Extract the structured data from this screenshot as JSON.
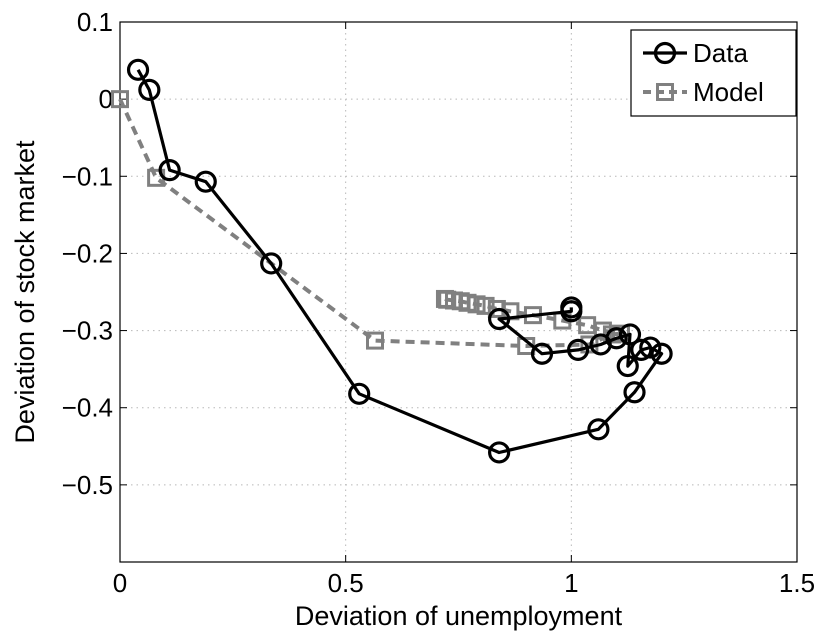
{
  "chart_data": {
    "type": "line",
    "xlabel": "Deviation of unemployment",
    "ylabel": "Deviation of stock market",
    "xlim": [
      0,
      1.5
    ],
    "ylim": [
      -0.6,
      0.1
    ],
    "x_ticks": [
      0,
      0.5,
      1,
      1.5
    ],
    "x_tick_labels": [
      "0",
      "0.5",
      "1",
      "1.5"
    ],
    "y_ticks": [
      0.1,
      0,
      -0.1,
      -0.2,
      -0.3,
      -0.4,
      -0.5
    ],
    "y_tick_labels": [
      "0.1",
      "0",
      "−0.1",
      "−0.2",
      "−0.3",
      "−0.4",
      "−0.5"
    ],
    "grid": true,
    "legend_position": "top-right",
    "series": [
      {
        "name": "Data",
        "color": "#000000",
        "marker": "circle",
        "line_style": "solid",
        "x": [
          0.04,
          0.065,
          0.11,
          0.19,
          0.335,
          0.53,
          0.84,
          1.06,
          1.14,
          1.2,
          1.175,
          1.155,
          1.125,
          1.13,
          1.1,
          1.065,
          1.015,
          0.935,
          0.84,
          1.0,
          1.0
        ],
        "y": [
          0.038,
          0.012,
          -0.092,
          -0.107,
          -0.213,
          -0.382,
          -0.458,
          -0.428,
          -0.38,
          -0.33,
          -0.322,
          -0.325,
          -0.346,
          -0.305,
          -0.31,
          -0.318,
          -0.325,
          -0.33,
          -0.285,
          -0.275,
          -0.27
        ]
      },
      {
        "name": "Model",
        "color": "#808080",
        "marker": "square",
        "line_style": "dashed",
        "x": [
          0.0,
          0.08,
          0.565,
          0.9,
          1.04,
          1.09,
          1.11,
          1.07,
          1.035,
          0.98,
          0.915,
          0.865,
          0.835,
          0.81,
          0.79,
          0.77,
          0.755,
          0.74,
          0.725,
          0.72
        ],
        "y": [
          0.0,
          -0.102,
          -0.313,
          -0.32,
          -0.318,
          -0.305,
          -0.304,
          -0.3,
          -0.293,
          -0.287,
          -0.28,
          -0.275,
          -0.272,
          -0.268,
          -0.266,
          -0.264,
          -0.262,
          -0.261,
          -0.26,
          -0.259
        ]
      }
    ]
  }
}
